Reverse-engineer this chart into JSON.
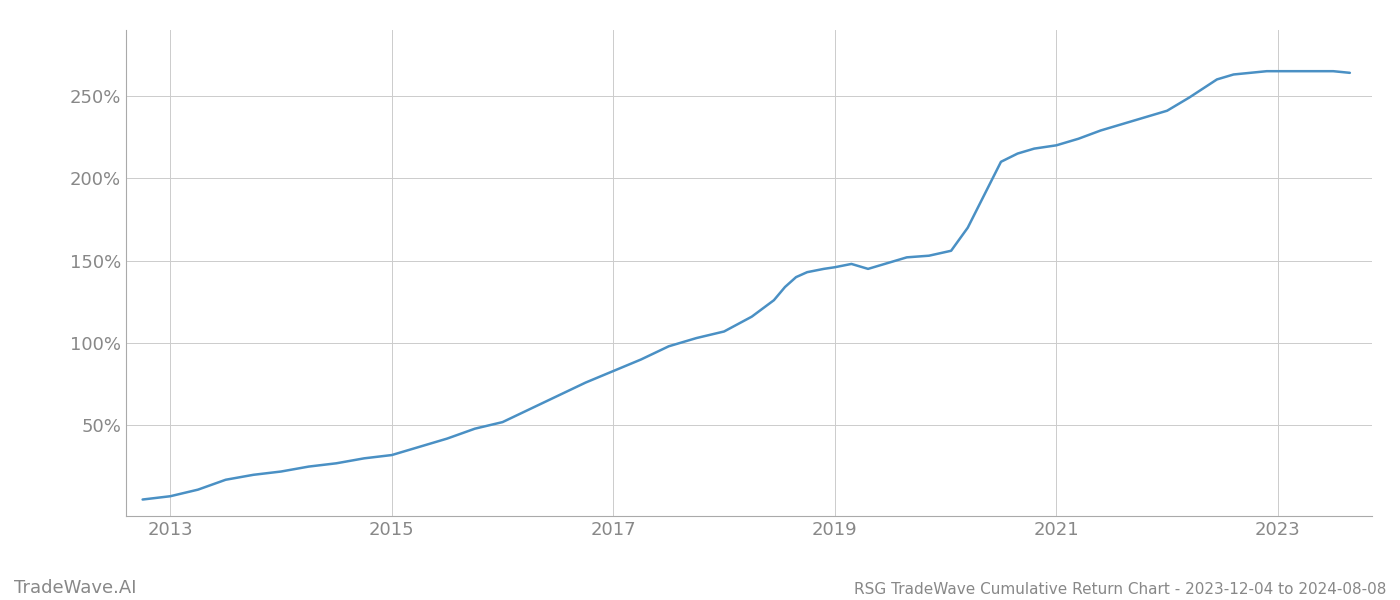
{
  "title": "RSG TradeWave Cumulative Return Chart - 2023-12-04 to 2024-08-08",
  "watermark": "TradeWave.AI",
  "line_color": "#4a90c4",
  "background_color": "#ffffff",
  "grid_color": "#cccccc",
  "x_tick_labels": [
    "2013",
    "2015",
    "2017",
    "2019",
    "2021",
    "2023"
  ],
  "x_tick_years": [
    2013,
    2015,
    2017,
    2019,
    2021,
    2023
  ],
  "ylim": [
    -5,
    290
  ],
  "yticks": [
    50,
    100,
    150,
    200,
    250
  ],
  "x_data": [
    2012.75,
    2013.0,
    2013.25,
    2013.5,
    2013.75,
    2014.0,
    2014.25,
    2014.5,
    2014.75,
    2015.0,
    2015.25,
    2015.5,
    2015.75,
    2016.0,
    2016.25,
    2016.5,
    2016.75,
    2017.0,
    2017.25,
    2017.5,
    2017.75,
    2018.0,
    2018.25,
    2018.45,
    2018.55,
    2018.65,
    2018.75,
    2018.9,
    2019.0,
    2019.15,
    2019.3,
    2019.45,
    2019.65,
    2019.85,
    2020.05,
    2020.2,
    2020.35,
    2020.5,
    2020.65,
    2020.8,
    2021.0,
    2021.2,
    2021.4,
    2021.6,
    2021.8,
    2022.0,
    2022.2,
    2022.45,
    2022.6,
    2022.75,
    2022.9,
    2023.0,
    2023.2,
    2023.5,
    2023.65
  ],
  "y_data": [
    5,
    7,
    11,
    17,
    20,
    22,
    25,
    27,
    30,
    32,
    37,
    42,
    48,
    52,
    60,
    68,
    76,
    83,
    90,
    98,
    103,
    107,
    116,
    126,
    134,
    140,
    143,
    145,
    146,
    148,
    145,
    148,
    152,
    153,
    156,
    170,
    190,
    210,
    215,
    218,
    220,
    224,
    229,
    233,
    237,
    241,
    249,
    260,
    263,
    264,
    265,
    265,
    265,
    265,
    264
  ],
  "xlim_left": 2012.6,
  "xlim_right": 2023.85,
  "title_fontsize": 11,
  "tick_fontsize": 13,
  "watermark_fontsize": 13,
  "line_width": 1.8,
  "spine_color": "#aaaaaa"
}
